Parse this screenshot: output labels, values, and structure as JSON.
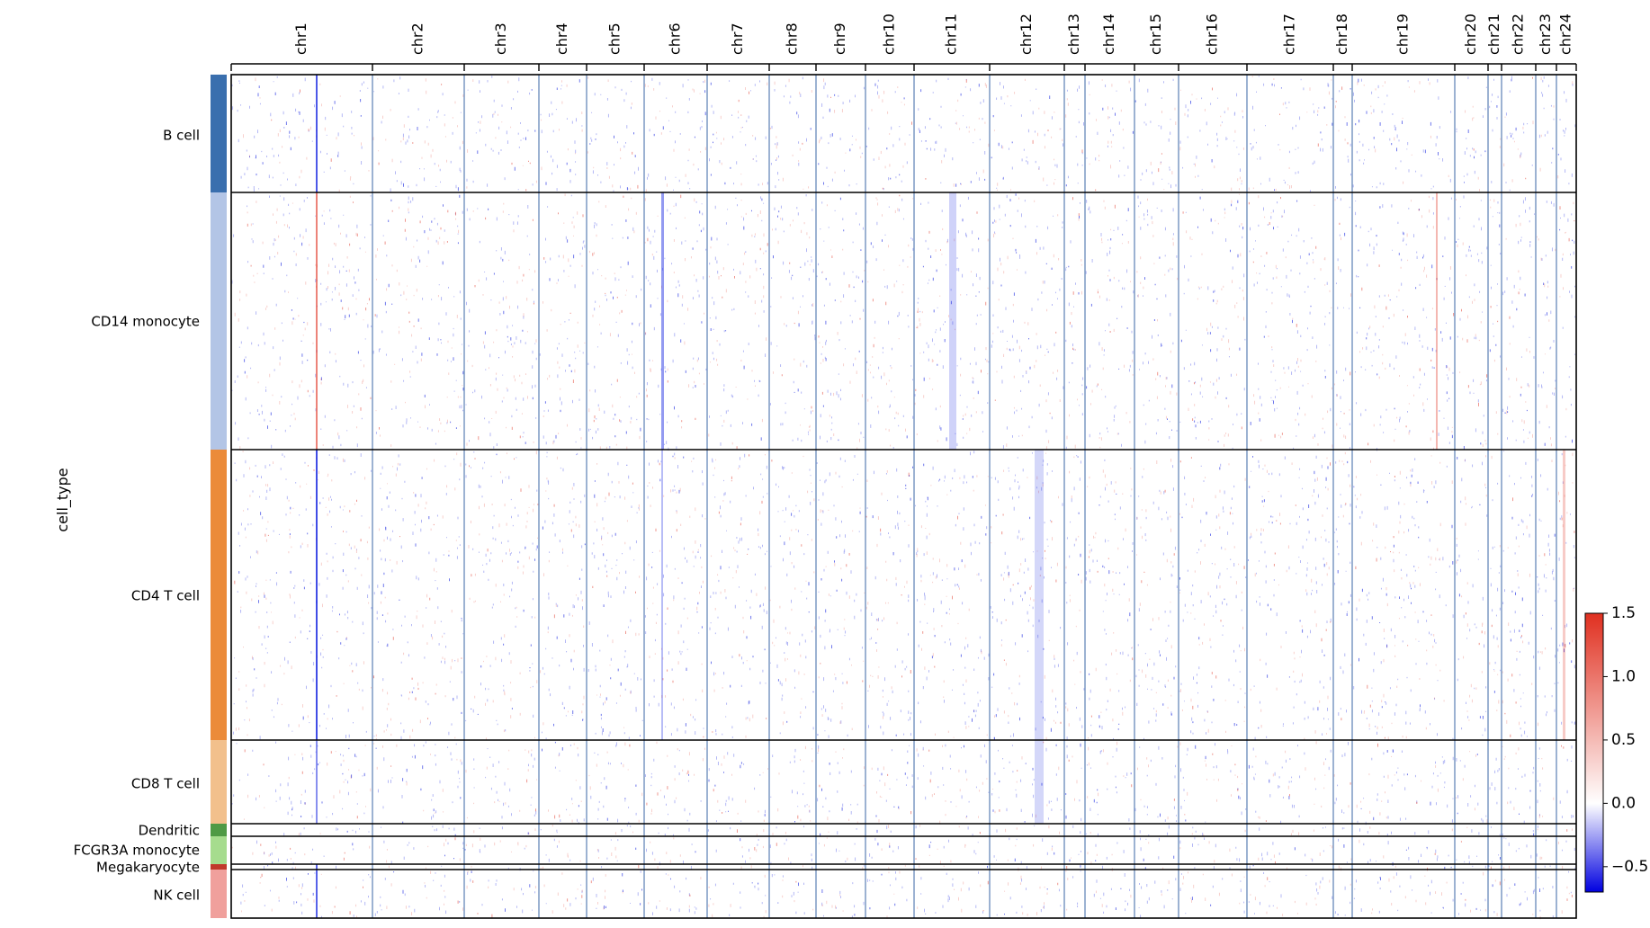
{
  "chart_data": {
    "type": "heatmap",
    "ylabel": "cell_type",
    "chromosomes": [
      "chr1",
      "chr2",
      "chr3",
      "chr4",
      "chr5",
      "chr6",
      "chr7",
      "chr8",
      "chr9",
      "chr10",
      "chr11",
      "chr12",
      "chr13",
      "chr14",
      "chr15",
      "chr16",
      "chr17",
      "chr18",
      "chr19",
      "chr20",
      "chr21",
      "chr22",
      "chr23",
      "chr24"
    ],
    "cell_types": [
      "B cell",
      "CD14 monocyte",
      "CD4 T cell",
      "CD8 T cell",
      "Dendritic",
      "FCGR3A monocyte",
      "Megakaryocyte",
      "NK cell"
    ],
    "cell_type_colors": [
      "#3a6fae",
      "#b3c5e6",
      "#eb8b3a",
      "#f2c08c",
      "#4f9a45",
      "#a6dc8e",
      "#c0392b",
      "#f0a09c"
    ],
    "colorbar": {
      "colors": [
        "#0000e0",
        "#ffffff",
        "#e03020"
      ],
      "range": [
        -0.7,
        1.5
      ],
      "ticks": [
        1.5,
        1.0,
        0.5,
        0.0,
        -0.5
      ],
      "tick_labels": [
        "1.5",
        "1.0",
        "0.5",
        "0.0",
        "−0.5"
      ]
    },
    "colors": {
      "boundary": "#5b7fb5",
      "frame": "#000000",
      "gain": "#e03020",
      "loss": "#1020e0"
    }
  }
}
